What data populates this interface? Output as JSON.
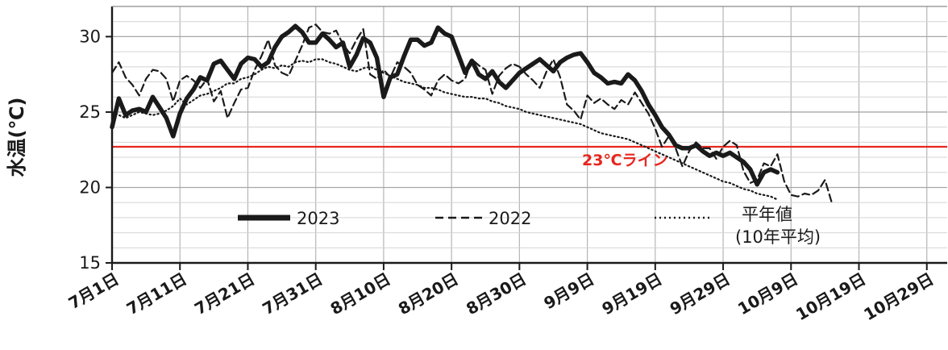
{
  "chart_data": {
    "type": "line",
    "ylabel": "水温(℃)",
    "ylim": [
      15,
      32
    ],
    "yticks": [
      "15",
      "20",
      "25",
      "30"
    ],
    "xlim": [
      0,
      123
    ],
    "grid": true,
    "x_ticks": [
      {
        "day": 0,
        "label": "7月1日"
      },
      {
        "day": 10,
        "label": "7月11日"
      },
      {
        "day": 20,
        "label": "7月21日"
      },
      {
        "day": 30,
        "label": "7月31日"
      },
      {
        "day": 40,
        "label": "8月10日"
      },
      {
        "day": 50,
        "label": "8月20日"
      },
      {
        "day": 60,
        "label": "8月30日"
      },
      {
        "day": 70,
        "label": "9月9日"
      },
      {
        "day": 80,
        "label": "9月19日"
      },
      {
        "day": 90,
        "label": "9月29日"
      },
      {
        "day": 100,
        "label": "10月9日"
      },
      {
        "day": 110,
        "label": "10月19日"
      },
      {
        "day": 120,
        "label": "10月29日"
      }
    ],
    "reference_line": {
      "value": 22.7,
      "label": "23℃ライン",
      "color": "#e8261f"
    },
    "series": [
      {
        "name": "2023",
        "style": "thick-solid",
        "values": [
          [
            0,
            24.0
          ],
          [
            1,
            25.9
          ],
          [
            2,
            24.8
          ],
          [
            3,
            25.1
          ],
          [
            4,
            25.2
          ],
          [
            5,
            25.0
          ],
          [
            6,
            26.0
          ],
          [
            7,
            25.3
          ],
          [
            8,
            24.6
          ],
          [
            9,
            23.4
          ],
          [
            10,
            24.9
          ],
          [
            11,
            25.9
          ],
          [
            12,
            26.5
          ],
          [
            13,
            27.3
          ],
          [
            14,
            27.1
          ],
          [
            15,
            28.2
          ],
          [
            16,
            28.4
          ],
          [
            17,
            27.8
          ],
          [
            18,
            27.2
          ],
          [
            19,
            28.2
          ],
          [
            20,
            28.6
          ],
          [
            21,
            28.5
          ],
          [
            22,
            28.0
          ],
          [
            23,
            28.3
          ],
          [
            24,
            29.3
          ],
          [
            25,
            30.0
          ],
          [
            26,
            30.3
          ],
          [
            27,
            30.7
          ],
          [
            28,
            30.3
          ],
          [
            29,
            29.6
          ],
          [
            30,
            29.6
          ],
          [
            31,
            30.2
          ],
          [
            32,
            29.8
          ],
          [
            33,
            29.3
          ],
          [
            34,
            29.6
          ],
          [
            35,
            28.0
          ],
          [
            36,
            28.8
          ],
          [
            37,
            29.9
          ],
          [
            38,
            29.6
          ],
          [
            39,
            28.6
          ],
          [
            40,
            26.0
          ],
          [
            41,
            27.3
          ],
          [
            42,
            27.5
          ],
          [
            43,
            28.7
          ],
          [
            44,
            29.8
          ],
          [
            45,
            29.8
          ],
          [
            46,
            29.4
          ],
          [
            47,
            29.6
          ],
          [
            48,
            30.6
          ],
          [
            49,
            30.2
          ],
          [
            50,
            30.0
          ],
          [
            51,
            28.8
          ],
          [
            52,
            27.6
          ],
          [
            53,
            28.4
          ],
          [
            54,
            27.5
          ],
          [
            55,
            27.2
          ],
          [
            56,
            27.7
          ],
          [
            57,
            27.0
          ],
          [
            58,
            26.6
          ],
          [
            59,
            27.1
          ],
          [
            60,
            27.6
          ],
          [
            61,
            27.9
          ],
          [
            62,
            28.2
          ],
          [
            63,
            28.5
          ],
          [
            64,
            28.1
          ],
          [
            65,
            27.7
          ],
          [
            66,
            28.3
          ],
          [
            67,
            28.6
          ],
          [
            68,
            28.8
          ],
          [
            69,
            28.9
          ],
          [
            70,
            28.3
          ],
          [
            71,
            27.6
          ],
          [
            72,
            27.3
          ],
          [
            73,
            26.9
          ],
          [
            74,
            27.0
          ],
          [
            75,
            26.9
          ],
          [
            76,
            27.5
          ],
          [
            77,
            27.1
          ],
          [
            78,
            26.4
          ],
          [
            79,
            25.5
          ],
          [
            80,
            24.8
          ],
          [
            81,
            24.0
          ],
          [
            82,
            23.5
          ],
          [
            83,
            22.8
          ],
          [
            84,
            22.6
          ],
          [
            85,
            22.6
          ],
          [
            86,
            22.8
          ],
          [
            87,
            22.4
          ],
          [
            88,
            22.1
          ],
          [
            89,
            22.3
          ],
          [
            90,
            22.1
          ],
          [
            91,
            22.3
          ],
          [
            92,
            22.0
          ],
          [
            93,
            21.7
          ],
          [
            94,
            21.2
          ],
          [
            95,
            20.2
          ],
          [
            96,
            21.0
          ],
          [
            97,
            21.2
          ],
          [
            98,
            21.0
          ]
        ]
      },
      {
        "name": "2022",
        "style": "dashed",
        "values": [
          [
            0,
            27.6
          ],
          [
            1,
            28.3
          ],
          [
            2,
            27.3
          ],
          [
            3,
            26.8
          ],
          [
            4,
            26.1
          ],
          [
            5,
            27.2
          ],
          [
            6,
            27.8
          ],
          [
            7,
            27.7
          ],
          [
            8,
            27.2
          ],
          [
            9,
            25.7
          ],
          [
            10,
            27.1
          ],
          [
            11,
            27.4
          ],
          [
            12,
            27.1
          ],
          [
            13,
            26.6
          ],
          [
            14,
            27.2
          ],
          [
            15,
            25.7
          ],
          [
            16,
            26.4
          ],
          [
            17,
            24.6
          ],
          [
            18,
            25.6
          ],
          [
            19,
            26.5
          ],
          [
            20,
            26.6
          ],
          [
            21,
            27.8
          ],
          [
            22,
            28.7
          ],
          [
            23,
            29.8
          ],
          [
            24,
            28.1
          ],
          [
            25,
            27.6
          ],
          [
            26,
            27.4
          ],
          [
            27,
            28.4
          ],
          [
            28,
            29.4
          ],
          [
            29,
            30.6
          ],
          [
            30,
            30.8
          ],
          [
            31,
            30.3
          ],
          [
            32,
            30.2
          ],
          [
            33,
            30.4
          ],
          [
            34,
            29.5
          ],
          [
            35,
            28.9
          ],
          [
            36,
            29.8
          ],
          [
            37,
            30.5
          ],
          [
            38,
            27.5
          ],
          [
            39,
            27.2
          ],
          [
            40,
            27.8
          ],
          [
            41,
            27.3
          ],
          [
            42,
            28.3
          ],
          [
            43,
            28.0
          ],
          [
            44,
            27.6
          ],
          [
            45,
            26.8
          ],
          [
            46,
            26.5
          ],
          [
            47,
            26.1
          ],
          [
            48,
            27.1
          ],
          [
            49,
            27.5
          ],
          [
            50,
            27.1
          ],
          [
            51,
            26.9
          ],
          [
            52,
            27.2
          ],
          [
            53,
            28.5
          ],
          [
            54,
            28.1
          ],
          [
            55,
            27.8
          ],
          [
            56,
            26.2
          ],
          [
            57,
            27.4
          ],
          [
            58,
            27.9
          ],
          [
            59,
            28.2
          ],
          [
            60,
            28.0
          ],
          [
            61,
            27.5
          ],
          [
            62,
            27.1
          ],
          [
            63,
            26.6
          ],
          [
            64,
            27.7
          ],
          [
            65,
            28.5
          ],
          [
            66,
            27.3
          ],
          [
            67,
            25.5
          ],
          [
            68,
            25.1
          ],
          [
            69,
            24.5
          ],
          [
            70,
            26.1
          ],
          [
            71,
            25.6
          ],
          [
            72,
            25.9
          ],
          [
            73,
            25.5
          ],
          [
            74,
            25.2
          ],
          [
            75,
            25.8
          ],
          [
            76,
            25.5
          ],
          [
            77,
            26.3
          ],
          [
            78,
            25.6
          ],
          [
            79,
            24.9
          ],
          [
            80,
            23.9
          ],
          [
            81,
            22.7
          ],
          [
            82,
            23.4
          ],
          [
            83,
            22.6
          ],
          [
            84,
            21.4
          ],
          [
            85,
            22.4
          ],
          [
            86,
            23.0
          ],
          [
            87,
            22.6
          ],
          [
            88,
            22.6
          ],
          [
            89,
            21.9
          ],
          [
            90,
            22.7
          ],
          [
            91,
            23.1
          ],
          [
            92,
            22.8
          ],
          [
            93,
            21.1
          ],
          [
            94,
            20.3
          ],
          [
            95,
            20.5
          ],
          [
            96,
            21.6
          ],
          [
            97,
            21.4
          ],
          [
            98,
            22.2
          ],
          [
            99,
            20.4
          ],
          [
            100,
            19.5
          ],
          [
            101,
            19.4
          ],
          [
            102,
            19.6
          ],
          [
            103,
            19.5
          ],
          [
            104,
            19.8
          ],
          [
            105,
            20.5
          ],
          [
            106,
            19.0
          ]
        ]
      },
      {
        "name": "平年値",
        "name_note": "(10年平均)",
        "style": "dotted",
        "values": [
          [
            0,
            25.0
          ],
          [
            1,
            24.8
          ],
          [
            2,
            24.6
          ],
          [
            3,
            24.8
          ],
          [
            4,
            25.0
          ],
          [
            5,
            24.9
          ],
          [
            6,
            24.8
          ],
          [
            7,
            24.9
          ],
          [
            8,
            25.1
          ],
          [
            9,
            25.4
          ],
          [
            10,
            25.9
          ],
          [
            11,
            25.5
          ],
          [
            12,
            25.8
          ],
          [
            13,
            26.1
          ],
          [
            14,
            26.2
          ],
          [
            15,
            26.4
          ],
          [
            16,
            26.6
          ],
          [
            17,
            26.9
          ],
          [
            18,
            26.9
          ],
          [
            19,
            27.2
          ],
          [
            20,
            27.3
          ],
          [
            21,
            27.5
          ],
          [
            22,
            27.8
          ],
          [
            23,
            28.0
          ],
          [
            24,
            27.9
          ],
          [
            25,
            28.1
          ],
          [
            26,
            28.0
          ],
          [
            27,
            28.3
          ],
          [
            28,
            28.4
          ],
          [
            29,
            28.3
          ],
          [
            30,
            28.5
          ],
          [
            31,
            28.5
          ],
          [
            32,
            28.3
          ],
          [
            33,
            28.2
          ],
          [
            34,
            28.0
          ],
          [
            35,
            27.8
          ],
          [
            36,
            27.7
          ],
          [
            37,
            27.9
          ],
          [
            38,
            28.0
          ],
          [
            39,
            27.8
          ],
          [
            40,
            27.6
          ],
          [
            41,
            27.4
          ],
          [
            42,
            27.2
          ],
          [
            43,
            27.0
          ],
          [
            44,
            26.9
          ],
          [
            45,
            26.8
          ],
          [
            46,
            26.6
          ],
          [
            47,
            26.6
          ],
          [
            48,
            26.5
          ],
          [
            49,
            26.3
          ],
          [
            50,
            26.2
          ],
          [
            51,
            26.1
          ],
          [
            52,
            26.0
          ],
          [
            53,
            26.0
          ],
          [
            54,
            25.9
          ],
          [
            55,
            25.9
          ],
          [
            56,
            25.7
          ],
          [
            57,
            25.6
          ],
          [
            58,
            25.4
          ],
          [
            59,
            25.3
          ],
          [
            60,
            25.2
          ],
          [
            61,
            25.0
          ],
          [
            62,
            24.9
          ],
          [
            63,
            24.8
          ],
          [
            64,
            24.7
          ],
          [
            65,
            24.6
          ],
          [
            66,
            24.5
          ],
          [
            67,
            24.4
          ],
          [
            68,
            24.3
          ],
          [
            69,
            24.2
          ],
          [
            70,
            24.0
          ],
          [
            71,
            23.8
          ],
          [
            72,
            23.6
          ],
          [
            73,
            23.5
          ],
          [
            74,
            23.4
          ],
          [
            75,
            23.3
          ],
          [
            76,
            23.2
          ],
          [
            77,
            23.0
          ],
          [
            78,
            22.8
          ],
          [
            79,
            22.6
          ],
          [
            80,
            22.4
          ],
          [
            81,
            22.2
          ],
          [
            82,
            22.0
          ],
          [
            83,
            21.8
          ],
          [
            84,
            21.6
          ],
          [
            85,
            21.4
          ],
          [
            86,
            21.2
          ],
          [
            87,
            21.0
          ],
          [
            88,
            20.8
          ],
          [
            89,
            20.6
          ],
          [
            90,
            20.4
          ],
          [
            91,
            20.3
          ],
          [
            92,
            20.1
          ],
          [
            93,
            19.9
          ],
          [
            94,
            19.8
          ],
          [
            95,
            19.6
          ],
          [
            96,
            19.5
          ],
          [
            97,
            19.4
          ],
          [
            98,
            19.2
          ]
        ]
      }
    ]
  }
}
